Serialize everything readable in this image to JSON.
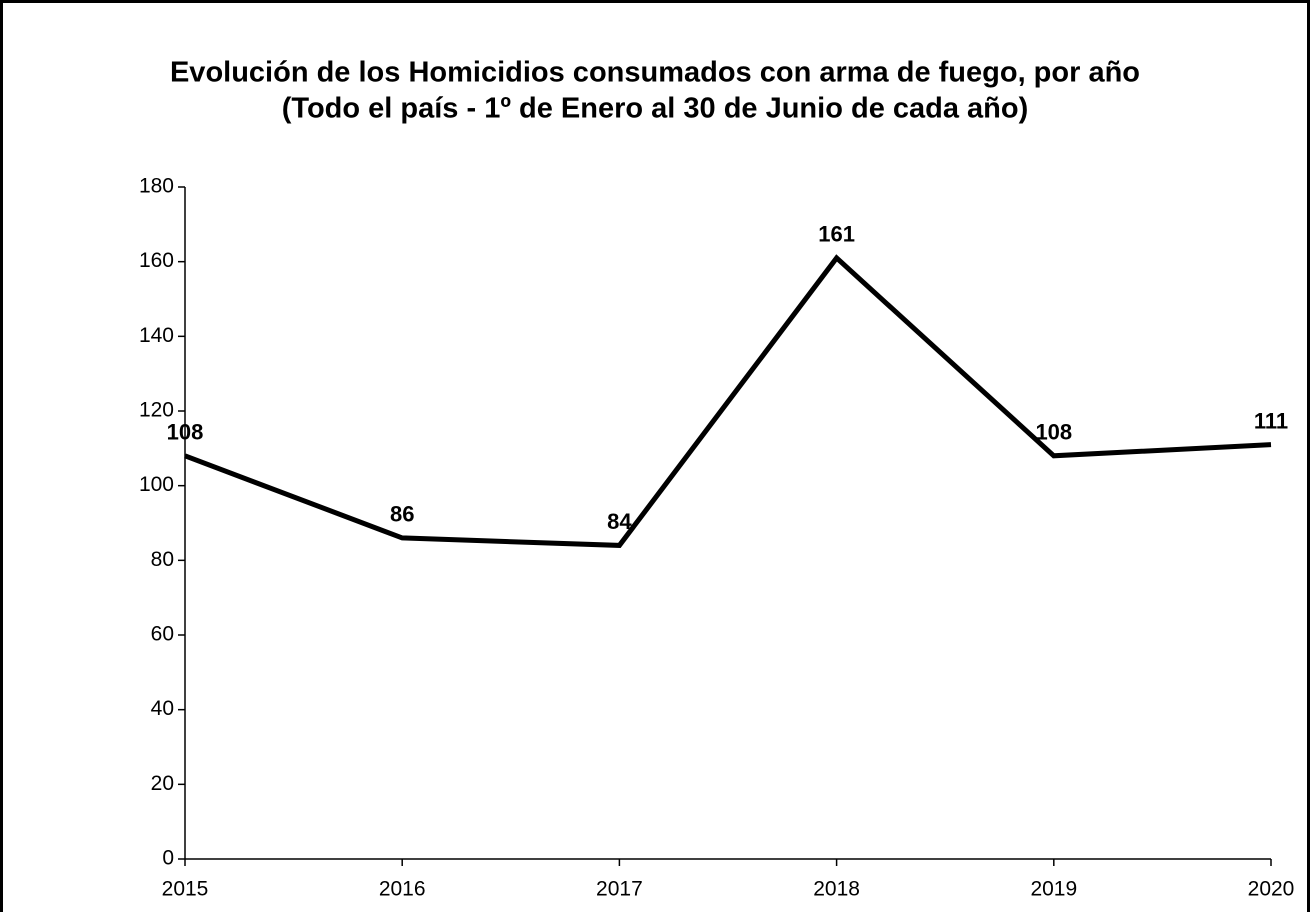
{
  "chart_data": {
    "type": "line",
    "title": "Evolución de los Homicidios consumados con arma de fuego, por año",
    "subtitle": "(Todo el país - 1º de Enero al 30 de Junio de cada año)",
    "x": [
      2015,
      2016,
      2017,
      2018,
      2019,
      2020
    ],
    "series": [
      {
        "color": "#000000",
        "values": [
          108,
          86,
          84,
          161,
          108,
          111
        ]
      }
    ],
    "xlim": [
      2015,
      2020
    ],
    "xticks": [
      2015,
      2016,
      2017,
      2018,
      2019,
      2020
    ],
    "ylim": [
      0,
      180
    ],
    "yticks": [
      0,
      20,
      40,
      60,
      80,
      100,
      120,
      140,
      160,
      180
    ],
    "grid": false
  }
}
